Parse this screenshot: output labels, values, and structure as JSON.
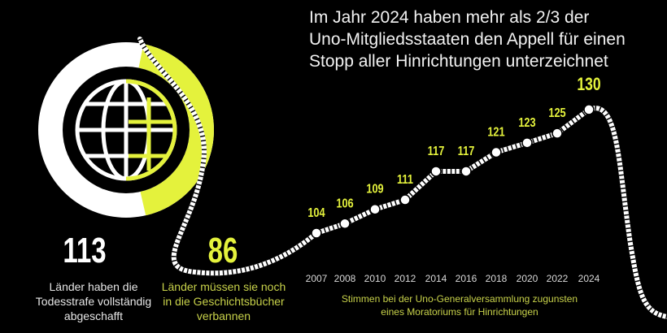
{
  "title_lines": [
    "Im Jahr 2024 haben mehr als 2/3 der",
    "Uno-Mitgliedsstaaten den Appell für einen",
    "Stopp aller Hinrichtungen unterzeichnet"
  ],
  "abolished": {
    "number": "113",
    "caption": [
      "Länder haben die",
      "Todesstrafe vollständig",
      "abgeschafft"
    ]
  },
  "remaining": {
    "number": "86",
    "caption": [
      "Länder müssen sie noch",
      "in die Geschichtsbücher",
      "verbannen"
    ]
  },
  "colors": {
    "accent": "#e4f23c",
    "white": "#ffffff",
    "background": "#000000"
  },
  "chart_data": {
    "type": "line",
    "title": "Stimmen bei der Uno-Generalversammlung zugunsten eines Moratoriums für Hinrichtungen",
    "categories": [
      "2007",
      "2008",
      "2010",
      "2012",
      "2014",
      "2016",
      "2018",
      "2020",
      "2022",
      "2024"
    ],
    "values": [
      104,
      106,
      109,
      111,
      117,
      117,
      121,
      123,
      125,
      130
    ],
    "xlabel": "",
    "ylabel": "",
    "legend_lines": [
      "Stimmen bei der Uno-Generalversammlung zugunsten",
      "eines Moratoriums für Hinrichtungen"
    ]
  },
  "donut": {
    "type": "pie",
    "values": [
      113,
      86
    ],
    "labels": [
      "abgeschafft",
      "noch nicht abgeschafft"
    ]
  }
}
